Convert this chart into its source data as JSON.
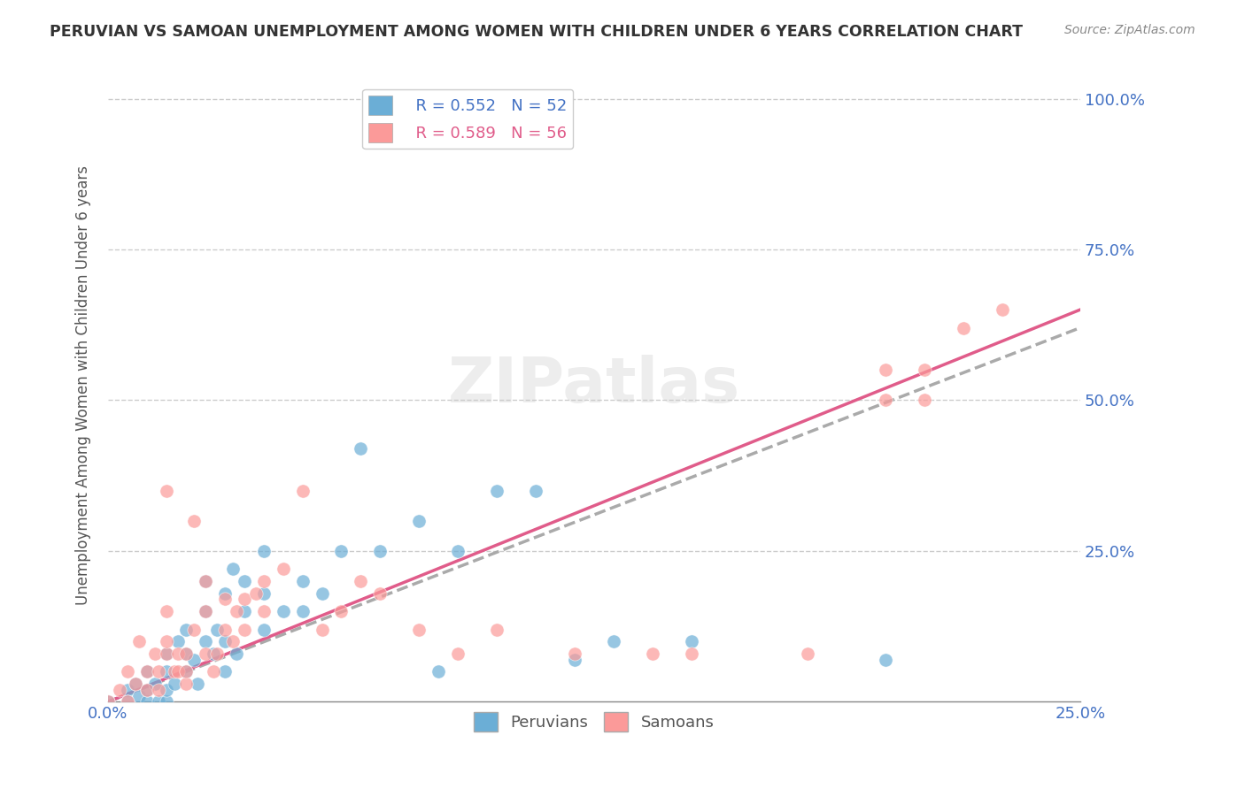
{
  "title": "PERUVIAN VS SAMOAN UNEMPLOYMENT AMONG WOMEN WITH CHILDREN UNDER 6 YEARS CORRELATION CHART",
  "source": "Source: ZipAtlas.com",
  "ylabel": "Unemployment Among Women with Children Under 6 years",
  "ytick_labels": [
    "100.0%",
    "75.0%",
    "50.0%",
    "25.0%"
  ],
  "ytick_values": [
    1.0,
    0.75,
    0.5,
    0.25
  ],
  "xlim": [
    0.0,
    0.25
  ],
  "ylim": [
    0.0,
    1.05
  ],
  "legend_peruvian_r": "R = 0.552",
  "legend_peruvian_n": "N = 52",
  "legend_samoan_r": "R = 0.589",
  "legend_samoan_n": "N = 56",
  "peruvian_color": "#6baed6",
  "samoan_color": "#fb9a99",
  "peruvian_scatter": [
    [
      0.0,
      0.0
    ],
    [
      0.005,
      0.02
    ],
    [
      0.005,
      0.0
    ],
    [
      0.007,
      0.03
    ],
    [
      0.008,
      0.01
    ],
    [
      0.01,
      0.0
    ],
    [
      0.01,
      0.02
    ],
    [
      0.01,
      0.05
    ],
    [
      0.012,
      0.03
    ],
    [
      0.013,
      0.0
    ],
    [
      0.015,
      0.0
    ],
    [
      0.015,
      0.02
    ],
    [
      0.015,
      0.05
    ],
    [
      0.015,
      0.08
    ],
    [
      0.017,
      0.03
    ],
    [
      0.018,
      0.1
    ],
    [
      0.02,
      0.05
    ],
    [
      0.02,
      0.08
    ],
    [
      0.02,
      0.12
    ],
    [
      0.022,
      0.07
    ],
    [
      0.023,
      0.03
    ],
    [
      0.025,
      0.1
    ],
    [
      0.025,
      0.15
    ],
    [
      0.025,
      0.2
    ],
    [
      0.027,
      0.08
    ],
    [
      0.028,
      0.12
    ],
    [
      0.03,
      0.05
    ],
    [
      0.03,
      0.1
    ],
    [
      0.03,
      0.18
    ],
    [
      0.032,
      0.22
    ],
    [
      0.033,
      0.08
    ],
    [
      0.035,
      0.15
    ],
    [
      0.035,
      0.2
    ],
    [
      0.04,
      0.12
    ],
    [
      0.04,
      0.18
    ],
    [
      0.04,
      0.25
    ],
    [
      0.045,
      0.15
    ],
    [
      0.05,
      0.15
    ],
    [
      0.05,
      0.2
    ],
    [
      0.055,
      0.18
    ],
    [
      0.06,
      0.25
    ],
    [
      0.065,
      0.42
    ],
    [
      0.07,
      0.25
    ],
    [
      0.08,
      0.3
    ],
    [
      0.085,
      0.05
    ],
    [
      0.09,
      0.25
    ],
    [
      0.1,
      0.35
    ],
    [
      0.11,
      0.35
    ],
    [
      0.12,
      0.07
    ],
    [
      0.13,
      0.1
    ],
    [
      0.15,
      0.1
    ],
    [
      0.2,
      0.07
    ]
  ],
  "samoan_scatter": [
    [
      0.0,
      0.0
    ],
    [
      0.003,
      0.02
    ],
    [
      0.005,
      0.0
    ],
    [
      0.005,
      0.05
    ],
    [
      0.007,
      0.03
    ],
    [
      0.008,
      0.1
    ],
    [
      0.01,
      0.02
    ],
    [
      0.01,
      0.05
    ],
    [
      0.012,
      0.08
    ],
    [
      0.013,
      0.02
    ],
    [
      0.013,
      0.05
    ],
    [
      0.015,
      0.08
    ],
    [
      0.015,
      0.1
    ],
    [
      0.015,
      0.15
    ],
    [
      0.015,
      0.35
    ],
    [
      0.017,
      0.05
    ],
    [
      0.018,
      0.05
    ],
    [
      0.018,
      0.08
    ],
    [
      0.02,
      0.03
    ],
    [
      0.02,
      0.05
    ],
    [
      0.02,
      0.08
    ],
    [
      0.022,
      0.12
    ],
    [
      0.022,
      0.3
    ],
    [
      0.025,
      0.08
    ],
    [
      0.025,
      0.15
    ],
    [
      0.025,
      0.2
    ],
    [
      0.027,
      0.05
    ],
    [
      0.028,
      0.08
    ],
    [
      0.03,
      0.12
    ],
    [
      0.03,
      0.17
    ],
    [
      0.032,
      0.1
    ],
    [
      0.033,
      0.15
    ],
    [
      0.035,
      0.12
    ],
    [
      0.035,
      0.17
    ],
    [
      0.038,
      0.18
    ],
    [
      0.04,
      0.15
    ],
    [
      0.04,
      0.2
    ],
    [
      0.045,
      0.22
    ],
    [
      0.05,
      0.35
    ],
    [
      0.055,
      0.12
    ],
    [
      0.06,
      0.15
    ],
    [
      0.065,
      0.2
    ],
    [
      0.07,
      0.18
    ],
    [
      0.08,
      0.12
    ],
    [
      0.09,
      0.08
    ],
    [
      0.1,
      0.12
    ],
    [
      0.12,
      0.08
    ],
    [
      0.14,
      0.08
    ],
    [
      0.15,
      0.08
    ],
    [
      0.18,
      0.08
    ],
    [
      0.2,
      0.5
    ],
    [
      0.2,
      0.55
    ],
    [
      0.21,
      0.5
    ],
    [
      0.21,
      0.55
    ],
    [
      0.22,
      0.62
    ],
    [
      0.23,
      0.65
    ]
  ],
  "peruvian_line": [
    [
      0.0,
      0.0
    ],
    [
      0.25,
      0.62
    ]
  ],
  "samoan_line": [
    [
      0.0,
      0.0
    ],
    [
      0.25,
      0.65
    ]
  ],
  "blue_color": "#4472c4",
  "pink_color": "#e05c8a",
  "dashed_color": "#aaaaaa"
}
